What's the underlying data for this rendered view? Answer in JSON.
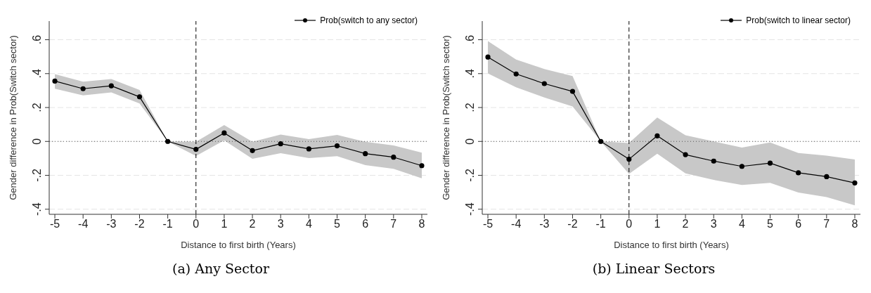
{
  "chart_data": [
    {
      "type": "line",
      "title": "(a) Any Sector",
      "xlabel": "Distance to first birth (Years)",
      "ylabel": "Gender difference in Prob(Switch sector)",
      "x": [
        -5,
        -4,
        -3,
        -2,
        -1,
        0,
        1,
        2,
        3,
        4,
        5,
        6,
        7,
        8
      ],
      "xlim": [
        -5.2,
        8.2
      ],
      "xticks": [
        -5,
        -4,
        -3,
        -2,
        -1,
        0,
        1,
        2,
        3,
        4,
        5,
        6,
        7,
        8
      ],
      "ylim": [
        -0.43,
        0.71
      ],
      "yticks": [
        {
          "value": -0.4,
          "label": "-.4"
        },
        {
          "value": -0.2,
          "label": "-.2"
        },
        0,
        {
          "value": 0.2,
          "label": ".2"
        },
        {
          "value": 0.4,
          "label": ".4"
        },
        {
          "value": 0.6,
          "label": ".6"
        }
      ],
      "grid": "y",
      "legend": "top right",
      "marker": "circle",
      "line_style": "solid",
      "series": [
        {
          "name": "Prob(switch to any sector)",
          "color": "#000000",
          "values": [
            0.356,
            0.311,
            0.328,
            0.263,
            0,
            -0.047,
            0.05,
            -0.054,
            -0.014,
            -0.044,
            -0.026,
            -0.072,
            -0.093,
            -0.143
          ],
          "lower": [
            0.311,
            0.272,
            0.289,
            0.224,
            0,
            -0.086,
            0.006,
            -0.102,
            -0.069,
            -0.098,
            -0.087,
            -0.14,
            -0.162,
            -0.218
          ],
          "upper": [
            0.397,
            0.352,
            0.368,
            0.304,
            0,
            -0.002,
            0.096,
            -0.002,
            0.041,
            0.014,
            0.038,
            -0.002,
            -0.024,
            -0.066
          ]
        }
      ],
      "ref_lines": [
        {
          "axis": "x",
          "value": 0,
          "line_style": "dashed",
          "color": "#000000"
        },
        {
          "axis": "y",
          "value": 0,
          "line_style": "dotted",
          "color": "#555555"
        }
      ]
    },
    {
      "type": "line",
      "title": "(b) Linear Sectors",
      "xlabel": "Distance to first birth (Years)",
      "ylabel": "Gender difference in Prob(Switch sector)",
      "x": [
        -5,
        -4,
        -3,
        -2,
        -1,
        0,
        1,
        2,
        3,
        4,
        5,
        6,
        7,
        8
      ],
      "xlim": [
        -5.2,
        8.2
      ],
      "xticks": [
        -5,
        -4,
        -3,
        -2,
        -1,
        0,
        1,
        2,
        3,
        4,
        5,
        6,
        7,
        8
      ],
      "ylim": [
        -0.43,
        0.71
      ],
      "yticks": [
        {
          "value": -0.4,
          "label": "-.4"
        },
        {
          "value": -0.2,
          "label": "-.2"
        },
        0,
        {
          "value": 0.2,
          "label": ".2"
        },
        {
          "value": 0.4,
          "label": ".4"
        },
        {
          "value": 0.6,
          "label": ".6"
        }
      ],
      "grid": "y",
      "legend": "top right",
      "marker": "circle",
      "line_style": "solid",
      "series": [
        {
          "name": "Prob(switch to linear sector)",
          "color": "#000000",
          "values": [
            0.498,
            0.398,
            0.341,
            0.295,
            0,
            -0.105,
            0.033,
            -0.078,
            -0.116,
            -0.147,
            -0.128,
            -0.185,
            -0.208,
            -0.245
          ],
          "lower": [
            0.401,
            0.319,
            0.259,
            0.206,
            0,
            -0.192,
            -0.072,
            -0.189,
            -0.227,
            -0.257,
            -0.245,
            -0.301,
            -0.328,
            -0.377
          ],
          "upper": [
            0.592,
            0.483,
            0.427,
            0.386,
            0,
            -0.009,
            0.141,
            0.036,
            0,
            -0.036,
            -0.006,
            -0.068,
            -0.084,
            -0.107
          ]
        }
      ],
      "ref_lines": [
        {
          "axis": "x",
          "value": 0,
          "line_style": "dashed",
          "color": "#000000"
        },
        {
          "axis": "y",
          "value": 0,
          "line_style": "dotted",
          "color": "#555555"
        }
      ]
    }
  ]
}
